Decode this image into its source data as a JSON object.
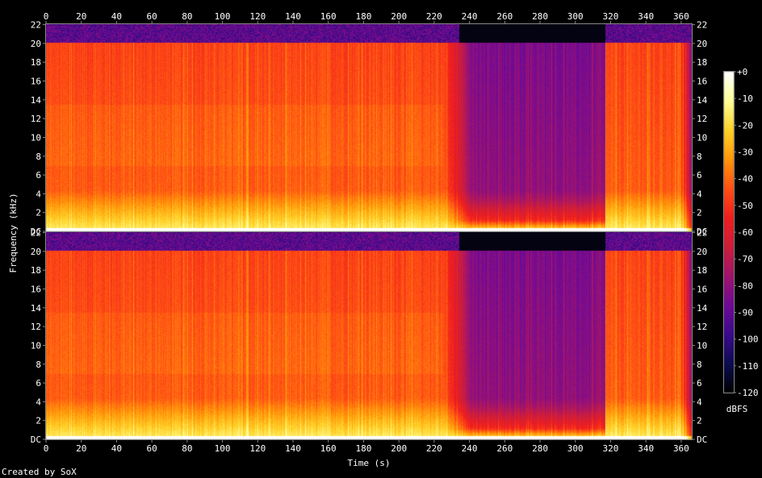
{
  "chart_data": {
    "type": "heatmap",
    "x_axis": {
      "label": "Time (s)",
      "range": [
        0,
        366
      ],
      "ticks": [
        0,
        20,
        40,
        60,
        80,
        100,
        120,
        140,
        160,
        180,
        200,
        220,
        240,
        260,
        280,
        300,
        320,
        340,
        360
      ]
    },
    "y_axis": {
      "label": "Frequency (kHz)",
      "range_khz": [
        0,
        22.05
      ],
      "tick_labels": [
        "DC",
        "2",
        "4",
        "6",
        "8",
        "10",
        "12",
        "14",
        "16",
        "18",
        "20",
        "22"
      ]
    },
    "channels": 2,
    "colorbar": {
      "unit": "dBFS",
      "range": [
        -120,
        0
      ],
      "tick_labels": [
        "+0",
        "-10",
        "-20",
        "-30",
        "-40",
        "-50",
        "-60",
        "-70",
        "-80",
        "-90",
        "-100",
        "-110",
        "-120"
      ],
      "colors": [
        "#000000",
        "#0d0d50",
        "#3c0a8c",
        "#6e0a96",
        "#a0146e",
        "#cd1e3c",
        "#f01e1e",
        "#ff5014",
        "#ff960a",
        "#ffd228",
        "#ffff96",
        "#ffffff"
      ]
    },
    "features": {
      "lowpass_cutoff_khz": 20,
      "quiet_section_seconds": [
        225,
        317
      ],
      "end_time_seconds": 366
    }
  },
  "footer": {
    "credit": "Created by SoX"
  }
}
